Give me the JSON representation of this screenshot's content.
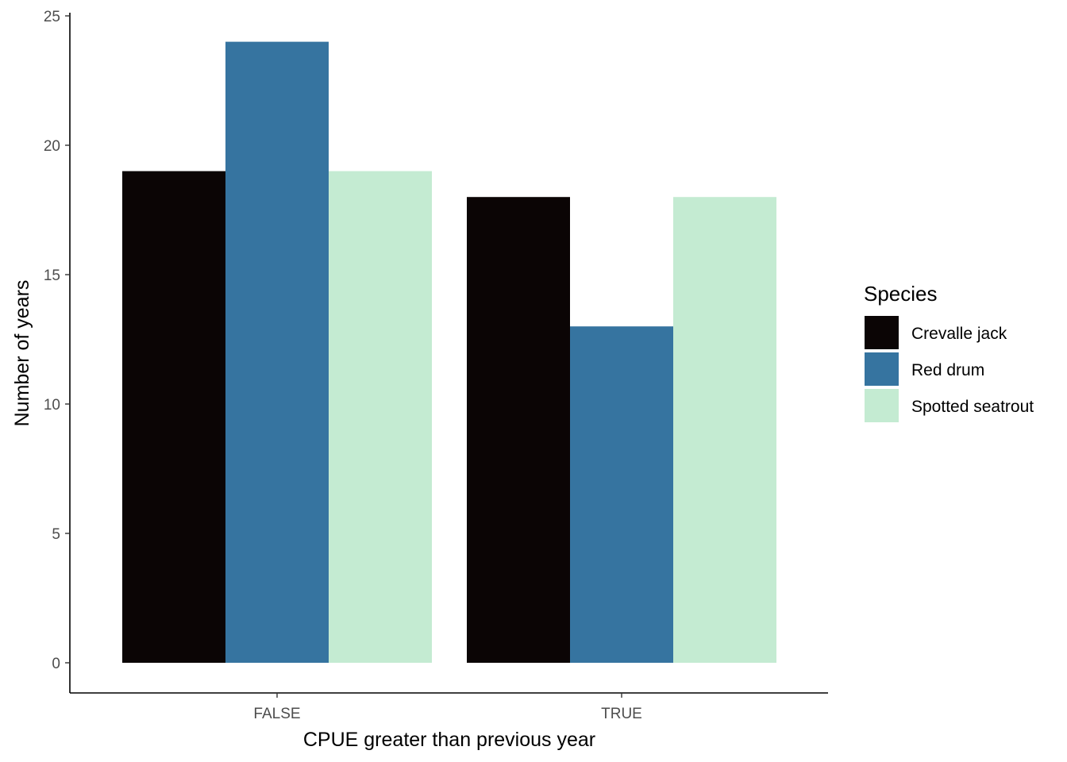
{
  "chart_data": {
    "type": "bar",
    "categories": [
      "FALSE",
      "TRUE"
    ],
    "series": [
      {
        "name": "Crevalle jack",
        "values": [
          19,
          18
        ],
        "color": "#0b0505"
      },
      {
        "name": "Red drum",
        "values": [
          24,
          13
        ],
        "color": "#3674a0"
      },
      {
        "name": "Spotted seatrout",
        "values": [
          19,
          18
        ],
        "color": "#c4ebd2"
      }
    ],
    "title": "",
    "xlabel": "CPUE greater than previous year",
    "ylabel": "Number of years",
    "ylim": [
      0,
      25
    ],
    "yticks": [
      0,
      5,
      10,
      15,
      20,
      25
    ],
    "legend": {
      "title": "Species",
      "position": "right"
    },
    "grid": false
  }
}
